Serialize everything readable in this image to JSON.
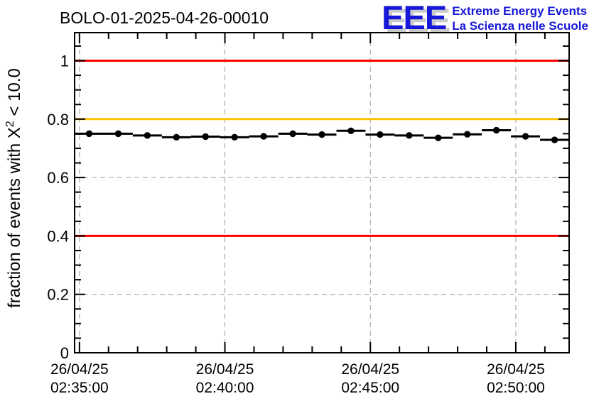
{
  "header": {
    "title": "BOLO-01-2025-04-26-00010",
    "logo": {
      "acronym": "EEE",
      "line1": "Extreme Energy Events",
      "line2": "La Scienza nelle Scuole",
      "blue": "#1717d9",
      "shadow": "#c9c9c9"
    }
  },
  "chart_data": {
    "type": "scatter",
    "title": "BOLO-01-2025-04-26-00010",
    "ylabel": {
      "pre": "fraction of events with X",
      "sup": "2",
      "post": " < 10.0"
    },
    "xlim_time": [
      "02:34:50",
      "02:51:50"
    ],
    "ylim": [
      0,
      1.096
    ],
    "x_minor_step_minutes": 1,
    "x_major_step_minutes": 5,
    "y_minor_step": 0.05,
    "grid": true,
    "grid_color": "#9c9c9c",
    "frame_color": "#000000",
    "x_ticks": [
      {
        "date": "26/04/25",
        "time": "02:35:00"
      },
      {
        "date": "26/04/25",
        "time": "02:40:00"
      },
      {
        "date": "26/04/25",
        "time": "02:45:00"
      },
      {
        "date": "26/04/25",
        "time": "02:50:00"
      }
    ],
    "y_ticks": [
      {
        "value": 0,
        "label": "0"
      },
      {
        "value": 0.2,
        "label": "0.2"
      },
      {
        "value": 0.4,
        "label": "0.4"
      },
      {
        "value": 0.6,
        "label": "0.6"
      },
      {
        "value": 0.8,
        "label": "0.8"
      },
      {
        "value": 1,
        "label": "1"
      }
    ],
    "thresholds": [
      {
        "value": 1.0,
        "color": "#ff0000"
      },
      {
        "value": 0.8,
        "color": "#ffc000"
      },
      {
        "value": 0.4,
        "color": "#ff0000"
      }
    ],
    "series": [
      {
        "name": "chi2-fraction",
        "marker": "filled-circle",
        "color": "#000000",
        "bin_halfwidth_minutes": 0.5,
        "points": [
          {
            "time": "02:35:20",
            "value": 0.75
          },
          {
            "time": "02:36:20",
            "value": 0.75
          },
          {
            "time": "02:37:20",
            "value": 0.744
          },
          {
            "time": "02:38:20",
            "value": 0.738
          },
          {
            "time": "02:39:20",
            "value": 0.74
          },
          {
            "time": "02:40:20",
            "value": 0.738
          },
          {
            "time": "02:41:20",
            "value": 0.741
          },
          {
            "time": "02:42:20",
            "value": 0.75
          },
          {
            "time": "02:43:20",
            "value": 0.747
          },
          {
            "time": "02:44:20",
            "value": 0.76
          },
          {
            "time": "02:45:20",
            "value": 0.747
          },
          {
            "time": "02:46:20",
            "value": 0.744
          },
          {
            "time": "02:47:20",
            "value": 0.736
          },
          {
            "time": "02:48:20",
            "value": 0.748
          },
          {
            "time": "02:49:20",
            "value": 0.762
          },
          {
            "time": "02:50:20",
            "value": 0.741
          },
          {
            "time": "02:51:20",
            "value": 0.729
          }
        ]
      }
    ]
  }
}
